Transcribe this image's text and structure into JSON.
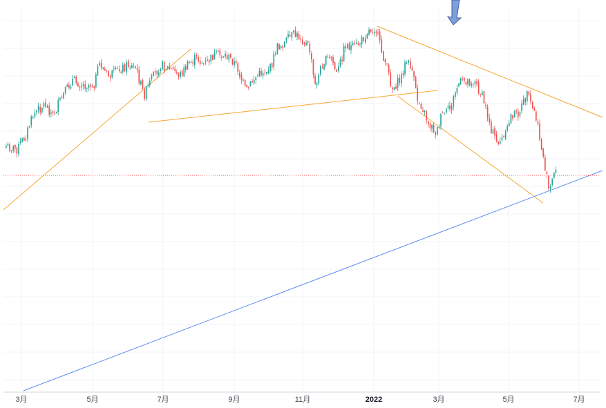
{
  "chart_data": {
    "type": "candlestick",
    "title": "",
    "xlabel": "",
    "ylabel": "",
    "x_ticks": [
      {
        "label": "3月",
        "bold": false
      },
      {
        "label": "5月",
        "bold": false
      },
      {
        "label": "7月",
        "bold": false
      },
      {
        "label": "9月",
        "bold": false
      },
      {
        "label": "11月",
        "bold": false
      },
      {
        "label": "2022",
        "bold": true
      },
      {
        "label": "3月",
        "bold": false
      },
      {
        "label": "5月",
        "bold": false
      },
      {
        "label": "7月",
        "bold": false
      }
    ],
    "grid": true,
    "colors": {
      "up": "#26a69a",
      "down": "#ef5350",
      "trendline_orange": "#f7a531",
      "trendline_blue": "#5b8def",
      "last_price_line": "#ef5350",
      "arrow": "#7f9fd8"
    },
    "price_path": [
      [
        0.0,
        0.7
      ],
      [
        0.02,
        0.72
      ],
      [
        0.035,
        0.64
      ],
      [
        0.05,
        0.51
      ],
      [
        0.07,
        0.45
      ],
      [
        0.085,
        0.52
      ],
      [
        0.1,
        0.42
      ],
      [
        0.12,
        0.31
      ],
      [
        0.14,
        0.34
      ],
      [
        0.16,
        0.33
      ],
      [
        0.17,
        0.21
      ],
      [
        0.185,
        0.29
      ],
      [
        0.2,
        0.26
      ],
      [
        0.22,
        0.22
      ],
      [
        0.235,
        0.24
      ],
      [
        0.25,
        0.4
      ],
      [
        0.265,
        0.3
      ],
      [
        0.28,
        0.22
      ],
      [
        0.3,
        0.25
      ],
      [
        0.315,
        0.28
      ],
      [
        0.33,
        0.22
      ],
      [
        0.345,
        0.18
      ],
      [
        0.36,
        0.22
      ],
      [
        0.375,
        0.17
      ],
      [
        0.395,
        0.16
      ],
      [
        0.41,
        0.19
      ],
      [
        0.42,
        0.24
      ],
      [
        0.435,
        0.38
      ],
      [
        0.45,
        0.3
      ],
      [
        0.465,
        0.26
      ],
      [
        0.48,
        0.24
      ],
      [
        0.49,
        0.12
      ],
      [
        0.505,
        0.09
      ],
      [
        0.52,
        0.04
      ],
      [
        0.535,
        0.06
      ],
      [
        0.55,
        0.12
      ],
      [
        0.56,
        0.35
      ],
      [
        0.575,
        0.2
      ],
      [
        0.59,
        0.18
      ],
      [
        0.6,
        0.28
      ],
      [
        0.615,
        0.1
      ],
      [
        0.63,
        0.12
      ],
      [
        0.645,
        0.08
      ],
      [
        0.655,
        0.02
      ],
      [
        0.67,
        0.0
      ],
      [
        0.68,
        0.13
      ],
      [
        0.69,
        0.23
      ],
      [
        0.7,
        0.36
      ],
      [
        0.715,
        0.31
      ],
      [
        0.725,
        0.2
      ],
      [
        0.735,
        0.23
      ],
      [
        0.745,
        0.42
      ],
      [
        0.755,
        0.47
      ],
      [
        0.765,
        0.56
      ],
      [
        0.78,
        0.62
      ],
      [
        0.79,
        0.52
      ],
      [
        0.805,
        0.48
      ],
      [
        0.82,
        0.33
      ],
      [
        0.835,
        0.31
      ],
      [
        0.85,
        0.32
      ],
      [
        0.865,
        0.42
      ],
      [
        0.88,
        0.6
      ],
      [
        0.89,
        0.68
      ],
      [
        0.905,
        0.65
      ],
      [
        0.915,
        0.52
      ],
      [
        0.93,
        0.5
      ],
      [
        0.945,
        0.4
      ],
      [
        0.96,
        0.52
      ],
      [
        0.975,
        0.78
      ],
      [
        0.985,
        0.98
      ],
      [
        0.995,
        0.84
      ],
      [
        1.0,
        0.78
      ]
    ]
  }
}
